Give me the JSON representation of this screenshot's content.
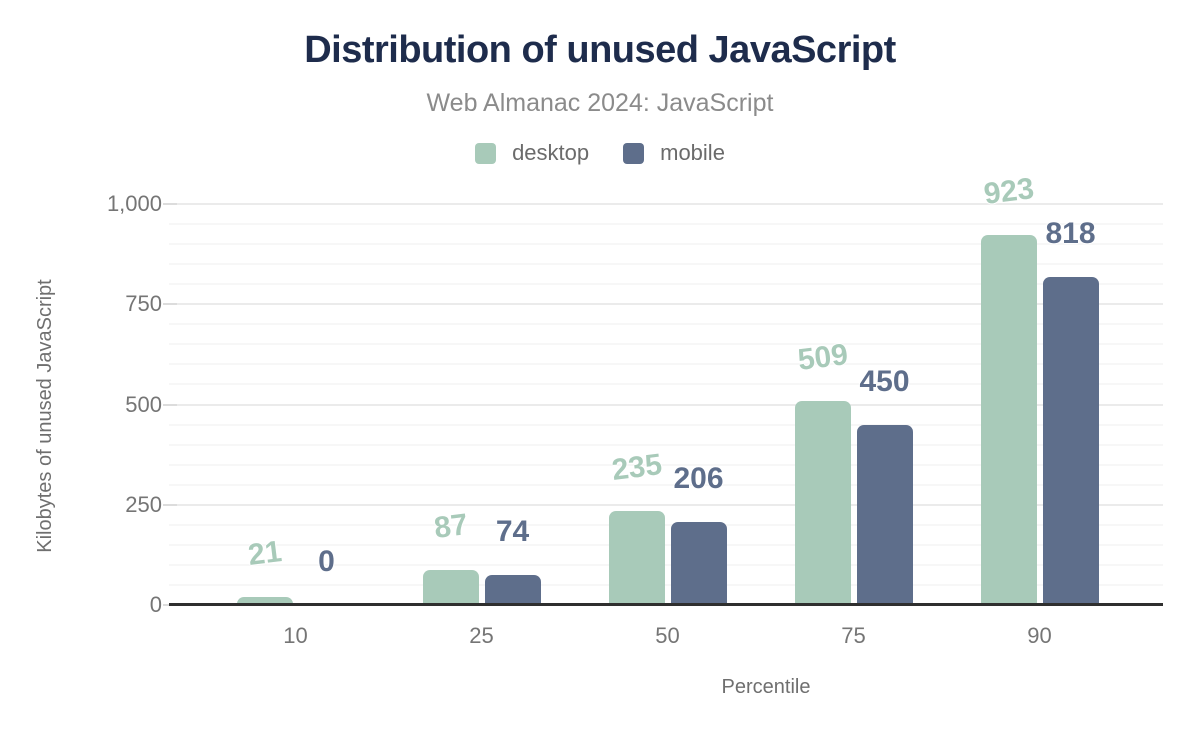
{
  "header": {
    "title": "Distribution of unused JavaScript",
    "subtitle": "Web Almanac 2024: JavaScript"
  },
  "chart_data": {
    "type": "bar",
    "title": "Distribution of unused JavaScript",
    "subtitle": "Web Almanac 2024: JavaScript",
    "categories": [
      "10",
      "25",
      "50",
      "75",
      "90"
    ],
    "series": [
      {
        "name": "desktop",
        "color": "#a8cab9",
        "values": [
          21,
          87,
          235,
          509,
          923
        ]
      },
      {
        "name": "mobile",
        "color": "#5e6e8b",
        "values": [
          0,
          74,
          206,
          450,
          818
        ]
      }
    ],
    "xlabel": "Percentile",
    "ylabel": "Kilobytes of unused JavaScript",
    "ylim": [
      0,
      1000
    ],
    "yticks": [
      0,
      250,
      500,
      750,
      1000
    ],
    "ytick_labels": [
      "0",
      "250",
      "500",
      "750",
      "1,000"
    ],
    "minor_grid_step": 50,
    "major_grid_step": 250,
    "grid": true,
    "legend_position": "top",
    "colors": {
      "title": "#1e2c4c",
      "subtitle": "#8b8b8b",
      "axis_text": "#757575",
      "axis_line": "#2f2f2f",
      "grid_major": "#ebebeb",
      "grid_minor": "#f7f7f7",
      "background": "#ffffff"
    }
  }
}
